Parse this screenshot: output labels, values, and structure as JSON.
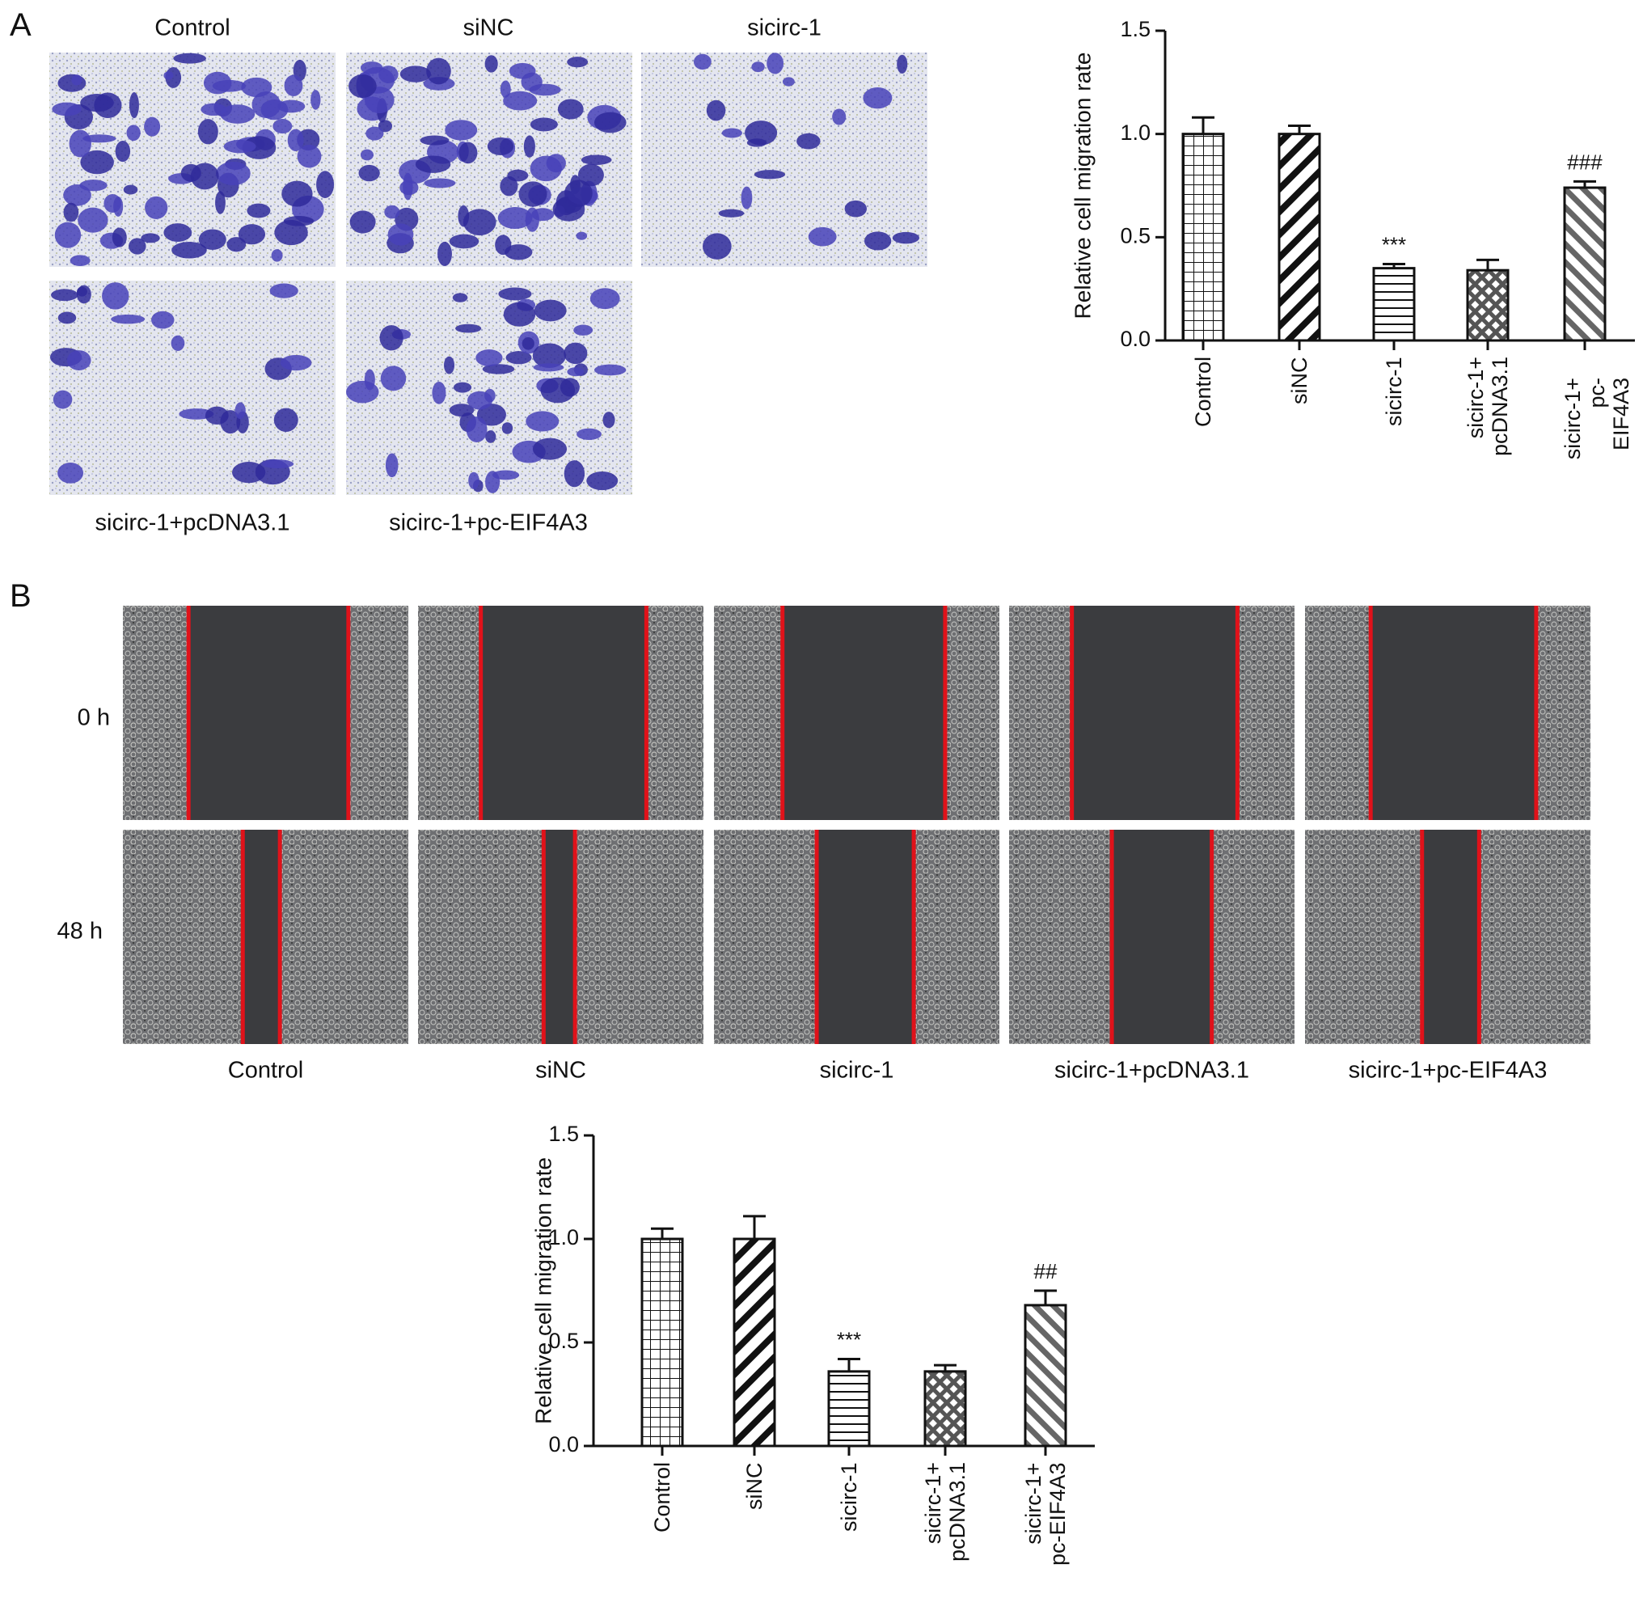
{
  "panels": {
    "a": {
      "label": "A",
      "captions": [
        "Control",
        "siNC",
        "sicirc-1",
        "sicirc-1+pcDNA3.1",
        "sicirc-1+pc-EIF4A3"
      ]
    },
    "b": {
      "label": "B",
      "row_labels": [
        "0 h",
        "48 h"
      ],
      "captions": [
        "Control",
        "siNC",
        "sicirc-1",
        "sicirc-1+pcDNA3.1",
        "sicirc-1+pc-EIF4A3"
      ]
    }
  },
  "chart_data": [
    {
      "type": "bar",
      "y_label": "Relative cell migration rate",
      "categories": [
        "Control",
        "siNC",
        "sicirc-1",
        "sicirc-1+\npcDNA3.1",
        "sicirc-1+\npc-EIF4A3"
      ],
      "values": [
        1.0,
        1.0,
        0.35,
        0.34,
        0.74
      ],
      "errors": [
        0.08,
        0.04,
        0.02,
        0.05,
        0.03
      ],
      "value_annotations": [
        null,
        null,
        "***",
        null,
        "###"
      ],
      "patterns": [
        "grid",
        "diag-thick",
        "horizontal",
        "crosshatch",
        "diag-thin"
      ],
      "ylim": [
        0,
        1.5
      ],
      "yticks": [
        {
          "value": 0,
          "label": "0.0"
        },
        {
          "value": 0.5,
          "label": "0.5"
        },
        {
          "value": 1.0,
          "label": "1.0"
        },
        {
          "value": 1.5,
          "label": "1.5"
        }
      ]
    },
    {
      "type": "bar",
      "y_label": "Relative cell migration rate",
      "categories": [
        "Control",
        "siNC",
        "sicirc-1",
        "sicirc-1+\npcDNA3.1",
        "sicirc-1+\npc-EIF4A3"
      ],
      "values": [
        1.0,
        1.0,
        0.36,
        0.36,
        0.68
      ],
      "errors": [
        0.05,
        0.11,
        0.06,
        0.03,
        0.07
      ],
      "value_annotations": [
        null,
        null,
        "***",
        null,
        "##"
      ],
      "patterns": [
        "grid",
        "diag-thick",
        "horizontal",
        "crosshatch",
        "diag-thin"
      ],
      "ylim": [
        0,
        1.5
      ],
      "yticks": [
        {
          "value": 0,
          "label": "0.0"
        },
        {
          "value": 0.5,
          "label": "0.5"
        },
        {
          "value": 1.0,
          "label": "1.0"
        },
        {
          "value": 1.5,
          "label": "1.5"
        }
      ]
    }
  ]
}
